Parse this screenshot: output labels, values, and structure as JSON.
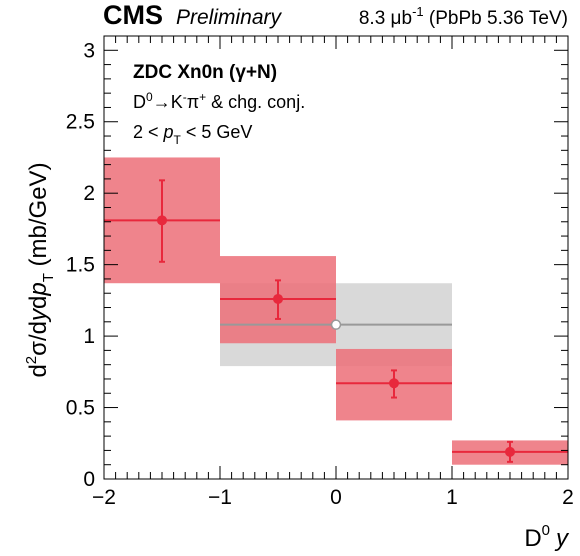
{
  "header": {
    "experiment": "CMS",
    "status": "Preliminary",
    "luminosity": "8.3 μb",
    "lumi_exp": "-1",
    "lumi_rest": " (PbPb 5.36 TeV)"
  },
  "annotations": {
    "line1": "ZDC Xn0n (γ+N)",
    "line2": {
      "a": "D",
      "a_sup": "0",
      "b": "→K",
      "b_sup": "-",
      "c": "π",
      "c_sup": "+",
      "d": " & chg. conj."
    },
    "line3": {
      "a": "2 < ",
      "b": "p",
      "b_sub": "T",
      "c": " < 5 GeV"
    }
  },
  "chart_data": {
    "type": "scatter",
    "title": "",
    "xlabel": {
      "main": "D",
      "sup": "0",
      "var": "y"
    },
    "ylabel": {
      "a": "d",
      "a_sup": "2",
      "b": "σ/d",
      "c": "y",
      "d": "d",
      "e": "p",
      "e_sub": "T",
      "f": " (mb/GeV)"
    },
    "xlim": [
      -2,
      2
    ],
    "ylim": [
      0,
      3.1
    ],
    "xticks": [
      -2,
      -1,
      0,
      1,
      2
    ],
    "xtick_labels": [
      "−2",
      "−1",
      "0",
      "1",
      "2"
    ],
    "yticks": [
      0,
      0.5,
      1,
      1.5,
      2,
      2.5,
      3
    ],
    "ytick_labels": [
      "0",
      "0.5",
      "1",
      "1.5",
      "2",
      "2.5",
      "3"
    ],
    "grid": false,
    "legend": "none",
    "series": [
      {
        "color": "#e8283c",
        "box_color": "#ec6e78",
        "marker": "filled-circle",
        "points": [
          {
            "x": -1.5,
            "xerr": 0.5,
            "y": 1.81,
            "stat_lo": 1.52,
            "stat_hi": 2.09,
            "sys_lo": 1.37,
            "sys_hi": 2.25
          },
          {
            "x": -0.5,
            "xerr": 0.5,
            "y": 1.26,
            "stat_lo": 1.12,
            "stat_hi": 1.39,
            "sys_lo": 0.95,
            "sys_hi": 1.56
          },
          {
            "x": 0.5,
            "xerr": 0.5,
            "y": 0.67,
            "stat_lo": 0.57,
            "stat_hi": 0.76,
            "sys_lo": 0.41,
            "sys_hi": 0.91
          },
          {
            "x": 1.5,
            "xerr": 0.5,
            "y": 0.19,
            "stat_lo": 0.12,
            "stat_hi": 0.26,
            "sys_lo": 0.1,
            "sys_hi": 0.27
          }
        ]
      },
      {
        "color": "#999999",
        "box_color": "#d9d9d9",
        "marker": "open-circle",
        "points": [
          {
            "x": 0,
            "xerr": 1,
            "y": 1.08,
            "sys_lo": 0.79,
            "sys_hi": 1.37
          }
        ]
      }
    ]
  }
}
